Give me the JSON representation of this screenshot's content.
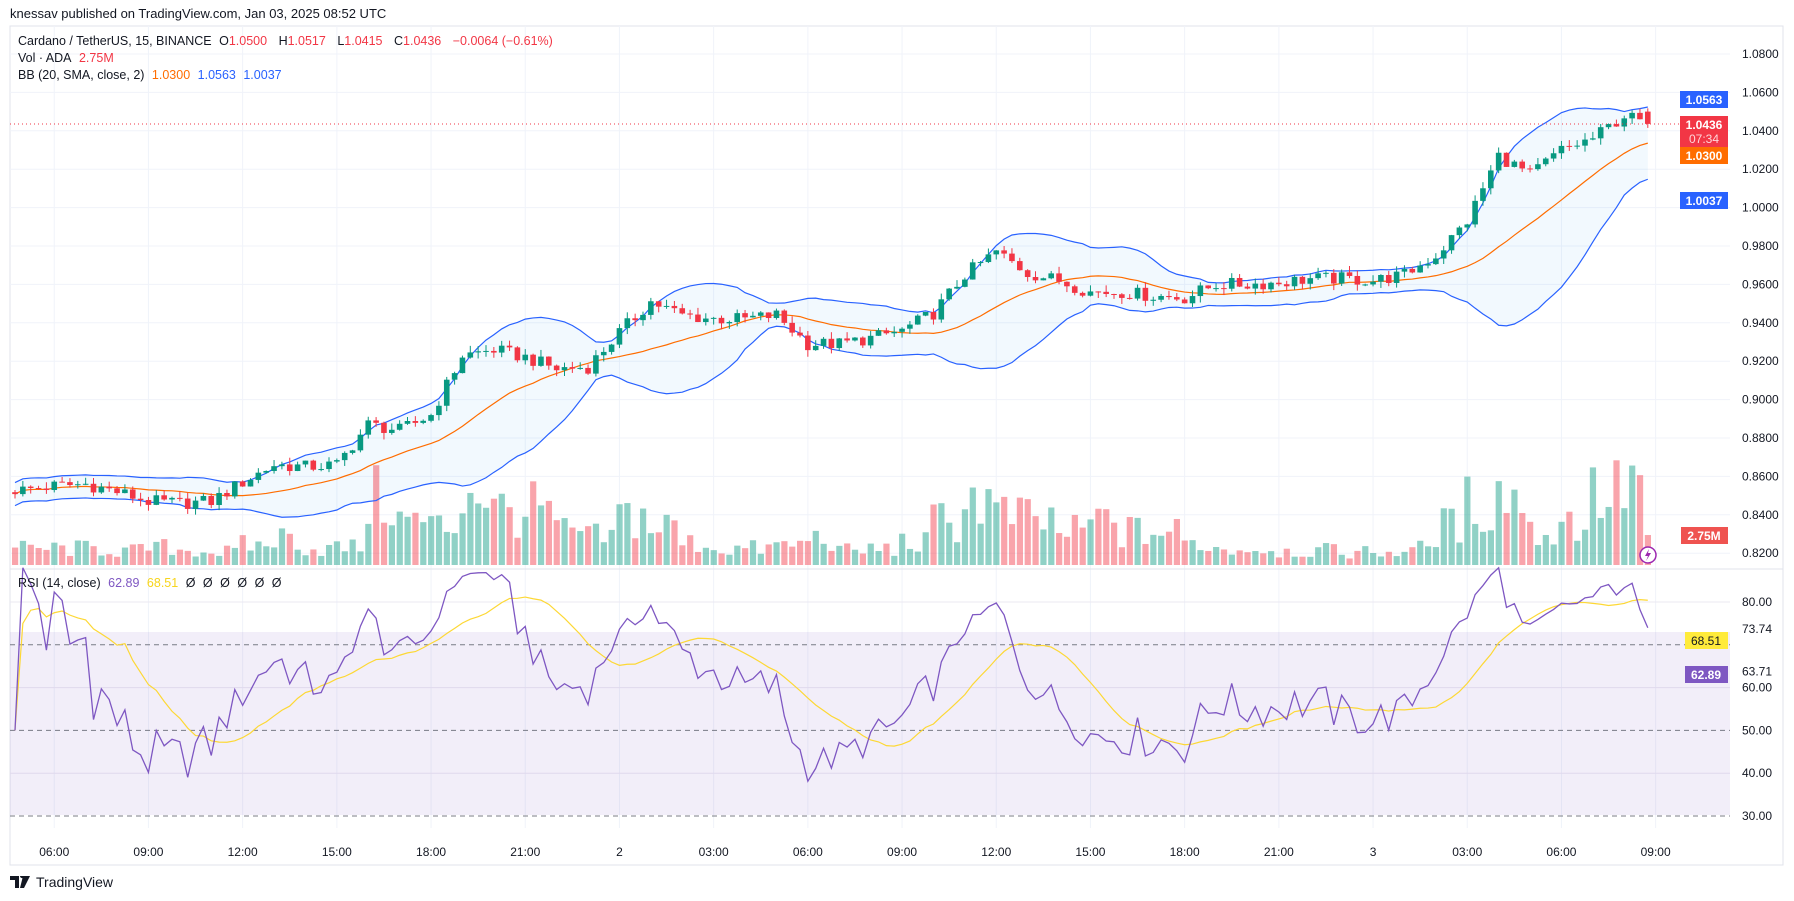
{
  "published": "knessav published on TradingView.com, Jan 03, 2025 08:52 UTC",
  "legend": {
    "symbol": "Cardano / TetherUS, 15, BINANCE",
    "o_label": "O",
    "o": "1.0500",
    "h_label": "H",
    "h": "1.0517",
    "l_label": "L",
    "l": "1.0415",
    "c_label": "C",
    "c": "1.0436",
    "change": "−0.0064 (−0.61%)",
    "vol_label": "Vol · ADA",
    "vol": "2.75M",
    "bb_label": "BB (20, SMA, close, 2)",
    "bb_basis": "1.0300",
    "bb_upper": "1.0563",
    "bb_lower": "1.0037",
    "rsi_label": "RSI (14, close)",
    "rsi": "62.89",
    "rsi_ma": "68.51",
    "rsi_empty": [
      "Ø",
      "Ø",
      "Ø",
      "Ø",
      "Ø",
      "Ø"
    ]
  },
  "price_axis": {
    "ticks": [
      "1.0800",
      "1.0600",
      "1.0400",
      "1.0200",
      "1.0000",
      "0.9800",
      "0.9600",
      "0.9400",
      "0.9200",
      "0.9000",
      "0.8800",
      "0.8600",
      "0.8400",
      "0.8200"
    ],
    "badges": {
      "bb_upper": "1.0563",
      "last_price": "1.0436",
      "countdown": "07:34",
      "bb_basis": "1.0300",
      "bb_lower": "1.0037",
      "volume": "2.75M"
    }
  },
  "rsi_axis": {
    "ticks": [
      "80.00",
      "60.00",
      "50.00",
      "40.00",
      "30.00"
    ],
    "extra_labels": [
      "73.74",
      "63.71"
    ],
    "badges": {
      "rsi_ma": "68.51",
      "rsi": "62.89"
    }
  },
  "time_axis": [
    "06:00",
    "09:00",
    "12:00",
    "15:00",
    "18:00",
    "21:00",
    "2",
    "03:00",
    "06:00",
    "09:00",
    "12:00",
    "15:00",
    "18:00",
    "21:00",
    "3",
    "03:00",
    "06:00",
    "09:00"
  ],
  "footer": {
    "brand": "TradingView"
  },
  "colors": {
    "up": "#089981",
    "down": "#F23645",
    "bb_band": "#2962FF",
    "bb_basis": "#FF6D00",
    "rsi": "#7E57C2",
    "rsi_ma": "#FDD835"
  },
  "chart_data": {
    "type": "candlestick",
    "title": "Cardano / TetherUS, 15, BINANCE",
    "interval_minutes": 15,
    "first_bar": "Jan 01 04:45",
    "last_bar_time": "Jan 03 08:45",
    "bar_count": 209,
    "hourly_close_anchors_from_jan01_05_00": [
      0.853,
      0.855,
      0.856,
      0.852,
      0.847,
      0.846,
      0.847,
      0.857,
      0.866,
      0.865,
      0.866,
      0.887,
      0.884,
      0.892,
      0.923,
      0.926,
      0.922,
      0.916,
      0.917,
      0.935,
      0.951,
      0.944,
      0.942,
      0.942,
      0.944,
      0.929,
      0.929,
      0.932,
      0.936,
      0.945,
      0.965,
      0.977,
      0.966,
      0.962,
      0.956,
      0.956,
      0.954,
      0.953,
      0.96,
      0.96,
      0.961,
      0.963,
      0.963,
      0.962,
      0.965,
      0.975,
      0.993,
      1.027,
      1.017,
      1.03,
      1.036,
      1.048
    ],
    "hourly_volume_millions_from_jan01_05_00": [
      1.5,
      1.5,
      1.5,
      1.3,
      1.6,
      1.4,
      1.2,
      1.8,
      2.5,
      1.5,
      1.6,
      6,
      4,
      3.5,
      7,
      5,
      5,
      3,
      2.5,
      4.5,
      3.5,
      2,
      1.5,
      1.5,
      1.8,
      2.5,
      1.3,
      1.5,
      2,
      4,
      6,
      4.5,
      4,
      3,
      4,
      3,
      3,
      2,
      1.5,
      1.5,
      1.3,
      1.3,
      1.2,
      1.2,
      1.5,
      3.5,
      5.5,
      6.5,
      3,
      4,
      6.5,
      7.5
    ],
    "last_bar": {
      "open": 1.05,
      "high": 1.0517,
      "low": 1.0415,
      "close": 1.0436,
      "volume_millions": 2.75
    },
    "price_range": [
      0.8145,
      1.089
    ],
    "rsi_range": [
      24,
      86
    ],
    "rsi_levels": [
      70,
      50,
      30
    ],
    "bollinger": {
      "length": 20,
      "mult": 2,
      "last_basis": 1.03,
      "last_upper": 1.0563,
      "last_lower": 1.0037
    },
    "rsi": {
      "length": 14,
      "last": 62.89,
      "last_ma": 68.51
    }
  }
}
